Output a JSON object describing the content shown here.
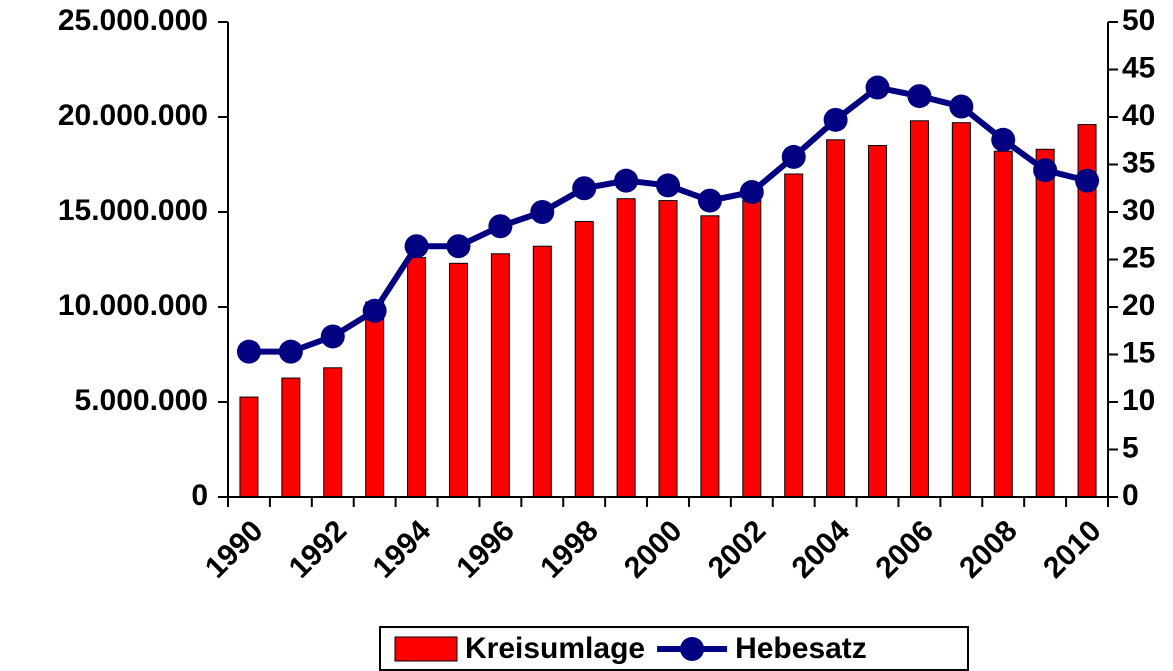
{
  "chart_data": {
    "type": "bar_line",
    "categories": [
      "1990",
      null,
      "1992",
      null,
      "1994",
      null,
      "1996",
      null,
      "1998",
      null,
      "2000",
      null,
      "2002",
      null,
      "2004",
      null,
      "2006",
      null,
      "2008",
      null,
      "2010"
    ],
    "series": [
      {
        "name": "Kreisumlage",
        "type": "bar",
        "color": "#ff0000",
        "values": [
          5260000,
          6260000,
          6800000,
          10260000,
          12600000,
          12300000,
          12800000,
          13200000,
          14500000,
          15700000,
          15600000,
          14800000,
          15600000,
          17000000,
          18800000,
          18500000,
          19800000,
          19700000,
          18200000,
          18300000,
          19600000
        ]
      },
      {
        "name": "Hebesatz",
        "type": "line",
        "axis": "y2",
        "color": "#000080",
        "values": [
          15.3,
          15.3,
          16.9,
          19.6,
          26.4,
          26.4,
          28.5,
          30,
          32.5,
          33.3,
          32.8,
          31.2,
          32.1,
          35.8,
          39.7,
          43.1,
          42.2,
          41.1,
          37.6,
          34.4,
          33.3
        ]
      }
    ],
    "ylim": [
      0,
      25000000
    ],
    "yticks": [
      0,
      {
        "value": 5000000,
        "label": "5.000.000"
      },
      {
        "value": 10000000,
        "label": "10.000.000"
      },
      {
        "value": 15000000,
        "label": "15.000.000"
      },
      {
        "value": 20000000,
        "label": "20.000.000"
      },
      {
        "value": 25000000,
        "label": "25.000.000"
      }
    ],
    "y2lim": [
      0,
      50
    ],
    "y2ticks": [
      0,
      5,
      10,
      15,
      20,
      25,
      30,
      35,
      40,
      45,
      50
    ],
    "legend": "bottom"
  }
}
